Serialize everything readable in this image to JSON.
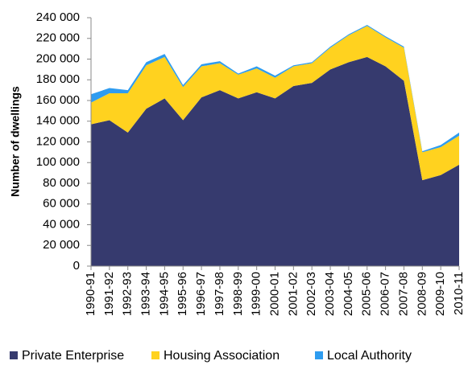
{
  "chart_data": {
    "type": "stacked-area",
    "y_label": "Number of dwellings",
    "categories": [
      "1990-91",
      "1991-92",
      "1992-93",
      "1993-94",
      "1994-95",
      "1995-96",
      "1996-97",
      "1997-98",
      "1998-99",
      "1999-00",
      "2000-01",
      "2001-02",
      "2002-03",
      "2003-04",
      "2004-05",
      "2005-06",
      "2006-07",
      "2007-08",
      "2008-09",
      "2009-10",
      "2010-11"
    ],
    "series": [
      {
        "name": "Private Enterprise",
        "color": "#363a6e",
        "values": [
          137000,
          141000,
          129000,
          152000,
          162000,
          141000,
          163000,
          170000,
          162000,
          168000,
          162000,
          174000,
          177000,
          190000,
          197000,
          202000,
          193000,
          179000,
          83000,
          88000,
          98000
        ]
      },
      {
        "name": "Housing Association",
        "color": "#ffd21f",
        "values": [
          21000,
          26000,
          38000,
          42000,
          40000,
          32000,
          30000,
          26000,
          23000,
          23000,
          20000,
          19000,
          19000,
          21000,
          26000,
          30000,
          28000,
          32000,
          27000,
          27000,
          28000
        ]
      },
      {
        "name": "Local Authority",
        "color": "#2e9cf0",
        "values": [
          8000,
          5000,
          3000,
          3000,
          3000,
          2000,
          2000,
          2000,
          1000,
          2000,
          2000,
          1000,
          1000,
          1000,
          1000,
          1000,
          1000,
          1000,
          1000,
          2000,
          3000
        ]
      }
    ],
    "ylim": [
      0,
      240000
    ],
    "yticks": [
      0,
      {
        "value": 20000,
        "label": "20 000"
      },
      {
        "value": 40000,
        "label": "40 000"
      },
      {
        "value": 60000,
        "label": "60 000"
      },
      {
        "value": 80000,
        "label": "80 000"
      },
      {
        "value": 100000,
        "label": "100 000"
      },
      {
        "value": 120000,
        "label": "120 000"
      },
      {
        "value": 140000,
        "label": "140 000"
      },
      {
        "value": 160000,
        "label": "160 000"
      },
      {
        "value": 180000,
        "label": "180 000"
      },
      {
        "value": 200000,
        "label": "200 000"
      },
      {
        "value": 220000,
        "label": "220 000"
      },
      {
        "value": 240000,
        "label": "240 000"
      }
    ],
    "grid": false,
    "legend": "bottom"
  }
}
